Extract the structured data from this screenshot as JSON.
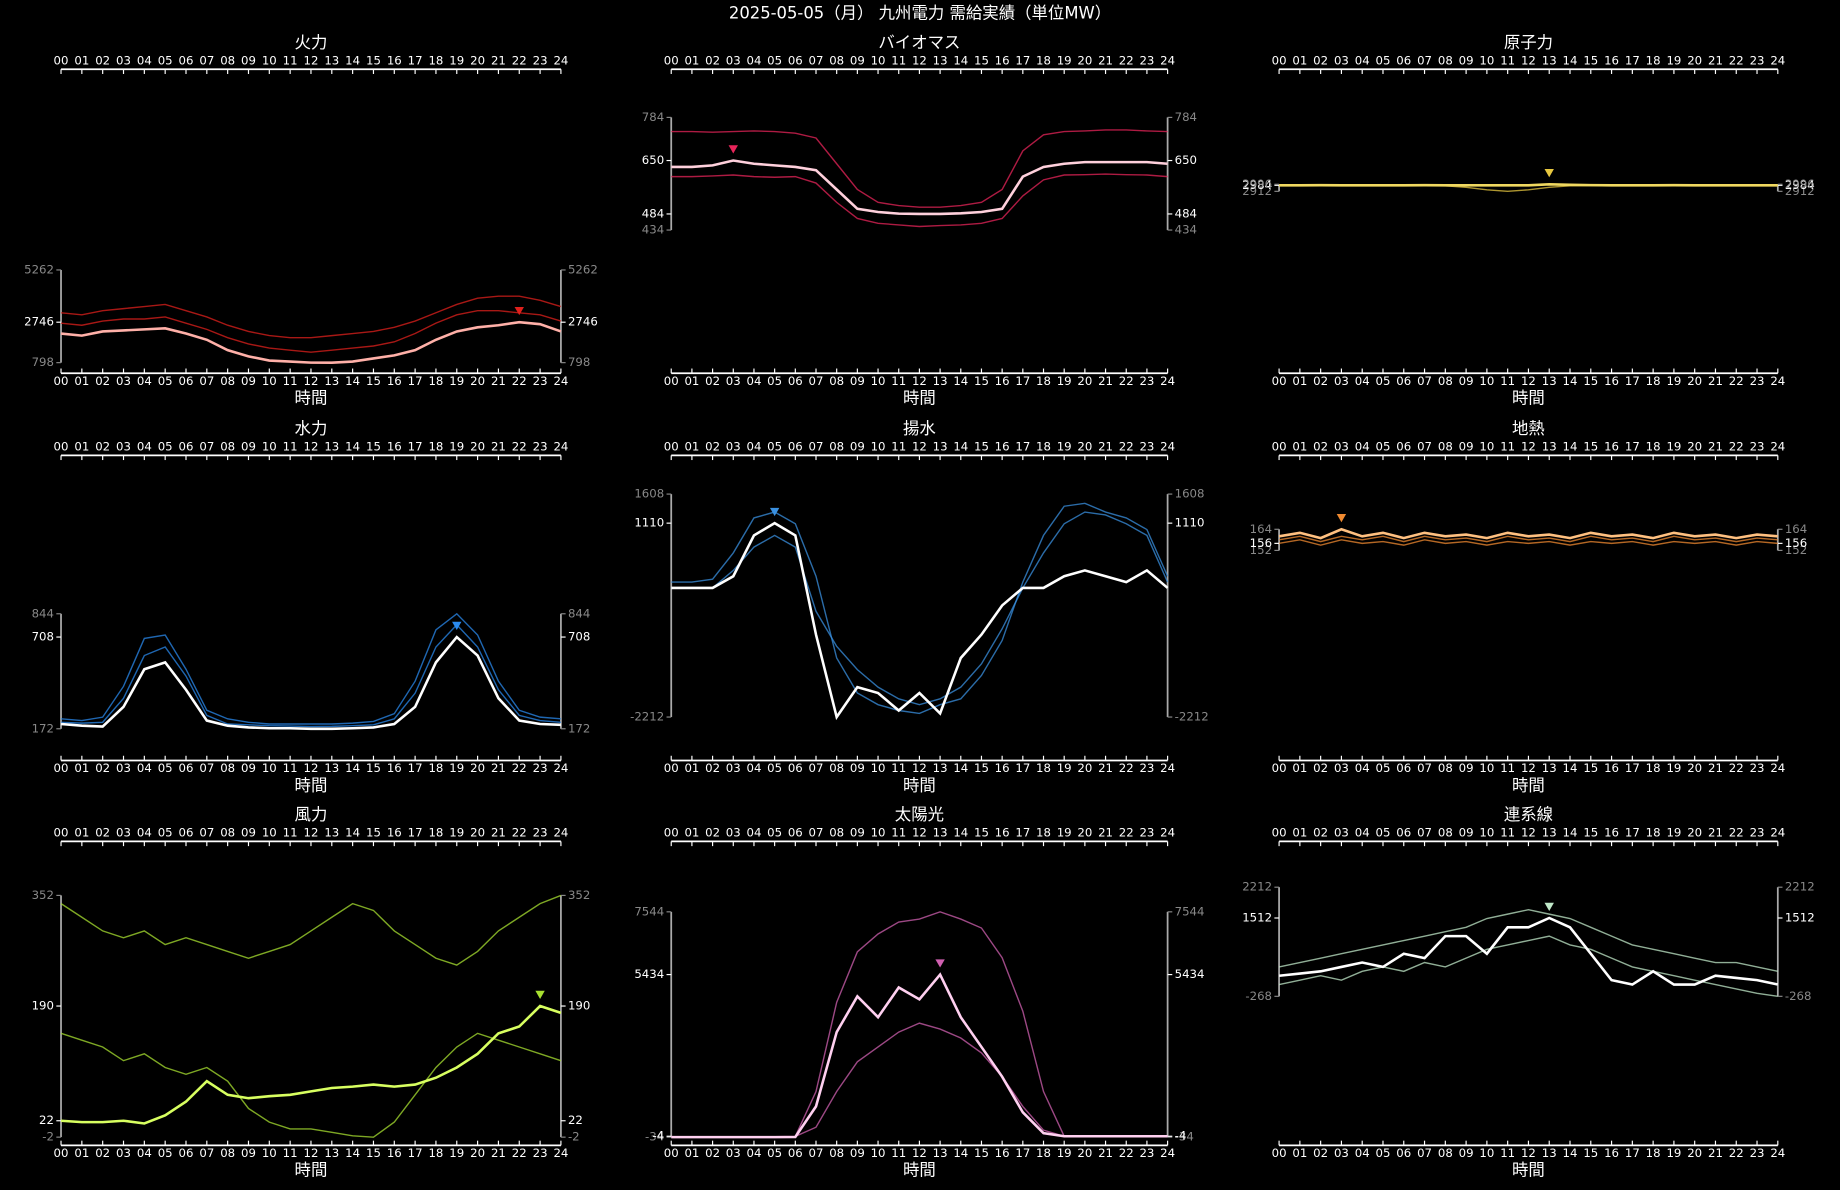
{
  "title": "2025-05-05（月） 九州電力 需給実績（単位MW）",
  "chart_data": [
    {
      "type": "line",
      "title": "火力",
      "xlabel": "時間",
      "categories": [
        "00",
        "01",
        "02",
        "03",
        "04",
        "05",
        "06",
        "07",
        "08",
        "09",
        "10",
        "11",
        "12",
        "13",
        "14",
        "15",
        "16",
        "17",
        "18",
        "19",
        "20",
        "21",
        "22",
        "23",
        "24"
      ],
      "ylim": [
        798,
        5262
      ],
      "yticks": [
        798,
        2746,
        5262
      ],
      "series": [
        {
          "color": "#e0201c",
          "values": [
            3200,
            3100,
            3300,
            3400,
            3500,
            3600,
            3300,
            3000,
            2600,
            2300,
            2100,
            2000,
            2000,
            2100,
            2200,
            2300,
            2500,
            2800,
            3200,
            3600,
            3900,
            4000,
            4000,
            3800,
            3500
          ]
        },
        {
          "color": "#e0201c",
          "values": [
            2700,
            2600,
            2800,
            2900,
            2900,
            3000,
            2700,
            2400,
            2000,
            1700,
            1500,
            1400,
            1300,
            1400,
            1500,
            1600,
            1800,
            2200,
            2700,
            3100,
            3300,
            3300,
            3200,
            3100,
            2800
          ]
        },
        {
          "color": "#ffb0a8",
          "values": [
            2200,
            2100,
            2300,
            2350,
            2400,
            2450,
            2200,
            1900,
            1400,
            1100,
            900,
            850,
            800,
            798,
            850,
            1000,
            1150,
            1400,
            1900,
            2300,
            2500,
            2600,
            2746,
            2650,
            2300
          ]
        }
      ]
    },
    {
      "type": "line",
      "title": "バイオマス",
      "xlabel": "時間",
      "categories": [
        "00",
        "01",
        "02",
        "03",
        "04",
        "05",
        "06",
        "07",
        "08",
        "09",
        "10",
        "11",
        "12",
        "13",
        "14",
        "15",
        "16",
        "17",
        "18",
        "19",
        "20",
        "21",
        "22",
        "23",
        "24"
      ],
      "ylim": [
        434,
        784
      ],
      "yticks": [
        434,
        484,
        650,
        784
      ],
      "series": [
        {
          "color": "#e8245a",
          "values": [
            740,
            740,
            738,
            740,
            742,
            740,
            735,
            720,
            640,
            560,
            520,
            510,
            505,
            505,
            510,
            520,
            560,
            680,
            730,
            740,
            742,
            745,
            745,
            742,
            740
          ]
        },
        {
          "color": "#e8245a",
          "values": [
            600,
            600,
            602,
            605,
            600,
            598,
            600,
            580,
            520,
            470,
            455,
            450,
            445,
            448,
            450,
            455,
            470,
            540,
            590,
            605,
            606,
            608,
            606,
            605,
            600
          ]
        },
        {
          "color": "#ffd0dc",
          "values": [
            630,
            630,
            635,
            650,
            640,
            635,
            630,
            620,
            560,
            500,
            490,
            485,
            484,
            484,
            486,
            490,
            500,
            600,
            630,
            640,
            645,
            645,
            645,
            645,
            640
          ]
        }
      ]
    },
    {
      "type": "line",
      "title": "原子力",
      "xlabel": "時間",
      "categories": [
        "00",
        "01",
        "02",
        "03",
        "04",
        "05",
        "06",
        "07",
        "08",
        "09",
        "10",
        "11",
        "12",
        "13",
        "14",
        "15",
        "16",
        "17",
        "18",
        "19",
        "20",
        "21",
        "22",
        "23",
        "24"
      ],
      "ylim": [
        2912,
        2996
      ],
      "yticks": [
        2912,
        2984,
        2996
      ],
      "series": [
        {
          "color": "#e8c840",
          "values": [
            2980,
            2980,
            2980,
            2980,
            2981,
            2980,
            2980,
            2980,
            2978,
            2960,
            2930,
            2912,
            2930,
            2960,
            2978,
            2980,
            2980,
            2980,
            2981,
            2980,
            2980,
            2980,
            2980,
            2980,
            2980
          ]
        },
        {
          "color": "#f0d860",
          "values": [
            2984,
            2984,
            2985,
            2984,
            2984,
            2984,
            2984,
            2985,
            2984,
            2984,
            2984,
            2984,
            2984,
            2996,
            2990,
            2986,
            2984,
            2984,
            2984,
            2985,
            2984,
            2984,
            2984,
            2984,
            2984
          ]
        }
      ]
    },
    {
      "type": "line",
      "title": "水力",
      "xlabel": "時間",
      "categories": [
        "00",
        "01",
        "02",
        "03",
        "04",
        "05",
        "06",
        "07",
        "08",
        "09",
        "10",
        "11",
        "12",
        "13",
        "14",
        "15",
        "16",
        "17",
        "18",
        "19",
        "20",
        "21",
        "22",
        "23",
        "24"
      ],
      "ylim": [
        172,
        844
      ],
      "yticks": [
        172,
        708,
        844
      ],
      "series": [
        {
          "color": "#2a8aee",
          "values": [
            230,
            220,
            240,
            420,
            700,
            720,
            520,
            280,
            230,
            210,
            200,
            200,
            200,
            200,
            205,
            215,
            260,
            450,
            750,
            844,
            720,
            450,
            280,
            240,
            230
          ]
        },
        {
          "color": "#2a8aee",
          "values": [
            210,
            205,
            210,
            350,
            600,
            650,
            480,
            250,
            200,
            195,
            190,
            188,
            185,
            186,
            190,
            195,
            230,
            380,
            650,
            780,
            650,
            400,
            250,
            220,
            210
          ]
        },
        {
          "color": "#ffffff",
          "values": [
            200,
            190,
            185,
            300,
            520,
            560,
            400,
            220,
            190,
            180,
            175,
            175,
            172,
            172,
            175,
            180,
            200,
            300,
            560,
            708,
            600,
            350,
            220,
            200,
            195
          ]
        }
      ]
    },
    {
      "type": "line",
      "title": "揚水",
      "xlabel": "時間",
      "categories": [
        "00",
        "01",
        "02",
        "03",
        "04",
        "05",
        "06",
        "07",
        "08",
        "09",
        "10",
        "11",
        "12",
        "13",
        "14",
        "15",
        "16",
        "17",
        "18",
        "19",
        "20",
        "21",
        "22",
        "23",
        "24"
      ],
      "ylim": [
        -2212,
        1608
      ],
      "yticks": [
        -2212,
        1110,
        1608
      ],
      "series": [
        {
          "color": "#3a90e0",
          "values": [
            100,
            100,
            150,
            600,
            1200,
            1300,
            1100,
            200,
            -1200,
            -1800,
            -2000,
            -2100,
            -2150,
            -2000,
            -1900,
            -1500,
            -900,
            100,
            900,
            1400,
            1450,
            1300,
            1200,
            1000,
            200
          ]
        },
        {
          "color": "#3a90e0",
          "values": [
            0,
            0,
            0,
            300,
            700,
            900,
            700,
            -400,
            -1000,
            -1400,
            -1700,
            -1900,
            -2000,
            -1900,
            -1700,
            -1300,
            -700,
            0,
            600,
            1100,
            1300,
            1250,
            1100,
            900,
            100
          ]
        },
        {
          "color": "#ffffff",
          "values": [
            0,
            0,
            0,
            200,
            900,
            1110,
            900,
            -800,
            -2212,
            -1700,
            -1800,
            -2100,
            -1800,
            -2150,
            -1200,
            -800,
            -300,
            0,
            0,
            200,
            300,
            200,
            100,
            300,
            0
          ]
        }
      ]
    },
    {
      "type": "line",
      "title": "地熱",
      "xlabel": "時間",
      "categories": [
        "00",
        "01",
        "02",
        "03",
        "04",
        "05",
        "06",
        "07",
        "08",
        "09",
        "10",
        "11",
        "12",
        "13",
        "14",
        "15",
        "16",
        "17",
        "18",
        "19",
        "20",
        "21",
        "22",
        "23",
        "24"
      ],
      "ylim": [
        152,
        164
      ],
      "yticks": [
        152,
        156,
        164
      ],
      "series": [
        {
          "color": "#f08a30",
          "values": [
            158,
            160,
            157,
            160,
            158,
            160,
            157,
            160,
            158,
            159,
            157,
            160,
            158,
            159,
            157,
            160,
            158,
            159,
            157,
            160,
            158,
            159,
            157,
            159,
            158
          ]
        },
        {
          "color": "#f08a30",
          "values": [
            156,
            158,
            155,
            158,
            156,
            157,
            155,
            158,
            156,
            157,
            155,
            157,
            156,
            157,
            155,
            157,
            156,
            157,
            155,
            157,
            156,
            157,
            155,
            157,
            156
          ]
        },
        {
          "color": "#ffc080",
          "values": [
            160,
            162,
            159,
            164,
            160,
            162,
            159,
            162,
            160,
            161,
            159,
            162,
            160,
            161,
            159,
            162,
            160,
            161,
            159,
            162,
            160,
            161,
            159,
            161,
            160
          ]
        }
      ]
    },
    {
      "type": "line",
      "title": "風力",
      "xlabel": "時間",
      "categories": [
        "00",
        "01",
        "02",
        "03",
        "04",
        "05",
        "06",
        "07",
        "08",
        "09",
        "10",
        "11",
        "12",
        "13",
        "14",
        "15",
        "16",
        "17",
        "18",
        "19",
        "20",
        "21",
        "22",
        "23",
        "24"
      ],
      "ylim": [
        -2,
        352
      ],
      "yticks": [
        -2,
        22,
        190,
        352
      ],
      "series": [
        {
          "color": "#a8e030",
          "values": [
            340,
            320,
            300,
            290,
            300,
            280,
            290,
            280,
            270,
            260,
            270,
            280,
            300,
            320,
            340,
            330,
            300,
            280,
            260,
            250,
            270,
            300,
            320,
            340,
            352
          ]
        },
        {
          "color": "#a8e030",
          "values": [
            150,
            140,
            130,
            110,
            120,
            100,
            90,
            100,
            80,
            40,
            20,
            10,
            10,
            5,
            0,
            -2,
            20,
            60,
            100,
            130,
            150,
            140,
            130,
            120,
            110
          ]
        },
        {
          "color": "#d8ff60",
          "values": [
            22,
            20,
            20,
            22,
            18,
            30,
            50,
            80,
            60,
            55,
            58,
            60,
            65,
            70,
            72,
            75,
            72,
            75,
            85,
            100,
            120,
            150,
            160,
            190,
            180
          ]
        }
      ]
    },
    {
      "type": "line",
      "title": "太陽光",
      "xlabel": "時間",
      "categories": [
        "00",
        "01",
        "02",
        "03",
        "04",
        "05",
        "06",
        "07",
        "08",
        "09",
        "10",
        "11",
        "12",
        "13",
        "14",
        "15",
        "16",
        "17",
        "18",
        "19",
        "20",
        "21",
        "22",
        "23",
        "24"
      ],
      "ylim": [
        -34,
        7544
      ],
      "yticks": [
        -34,
        -4,
        5434,
        7544
      ],
      "series": [
        {
          "color": "#d060b0",
          "values": [
            -20,
            -20,
            -20,
            -20,
            -20,
            -20,
            -10,
            1500,
            4500,
            6200,
            6800,
            7200,
            7300,
            7544,
            7300,
            7000,
            6000,
            4200,
            1500,
            -4,
            -4,
            -4,
            -4,
            -4,
            -4
          ]
        },
        {
          "color": "#d060b0",
          "values": [
            -20,
            -20,
            -20,
            -20,
            -20,
            -20,
            -10,
            300,
            1500,
            2500,
            3000,
            3500,
            3800,
            3600,
            3300,
            2800,
            2000,
            1000,
            200,
            -4,
            -4,
            -4,
            -4,
            -4,
            -4
          ]
        },
        {
          "color": "#ffd0f0",
          "values": [
            -34,
            -34,
            -34,
            -34,
            -34,
            -34,
            -30,
            1000,
            3500,
            4700,
            4000,
            5000,
            4600,
            5434,
            4000,
            3000,
            2000,
            800,
            100,
            -4,
            -4,
            -4,
            -4,
            -4,
            -4
          ]
        }
      ]
    },
    {
      "type": "line",
      "title": "連系線",
      "xlabel": "時間",
      "categories": [
        "00",
        "01",
        "02",
        "03",
        "04",
        "05",
        "06",
        "07",
        "08",
        "09",
        "10",
        "11",
        "12",
        "13",
        "14",
        "15",
        "16",
        "17",
        "18",
        "19",
        "20",
        "21",
        "22",
        "23",
        "24"
      ],
      "ylim": [
        -268,
        2212
      ],
      "yticks": [
        -268,
        1512,
        2212
      ],
      "series": [
        {
          "color": "#c0e8c8",
          "values": [
            400,
            500,
            600,
            700,
            800,
            900,
            1000,
            1100,
            1200,
            1300,
            1500,
            1600,
            1700,
            1600,
            1500,
            1300,
            1100,
            900,
            800,
            700,
            600,
            500,
            500,
            400,
            300
          ]
        },
        {
          "color": "#c0e8c8",
          "values": [
            0,
            100,
            200,
            100,
            300,
            400,
            300,
            500,
            400,
            600,
            800,
            900,
            1000,
            1100,
            900,
            800,
            600,
            400,
            300,
            200,
            100,
            0,
            -100,
            -200,
            -268
          ]
        },
        {
          "color": "#ffffff",
          "values": [
            200,
            250,
            300,
            400,
            500,
            400,
            700,
            600,
            1100,
            1100,
            700,
            1300,
            1300,
            1512,
            1300,
            700,
            100,
            0,
            300,
            0,
            0,
            200,
            150,
            100,
            0
          ]
        }
      ]
    }
  ]
}
